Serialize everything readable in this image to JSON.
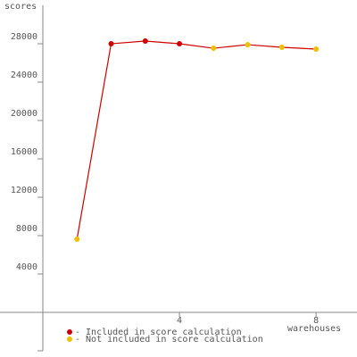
{
  "chart_data": {
    "type": "line",
    "y_label": "scores",
    "x_label": "warehouses",
    "x": [
      1,
      2,
      3,
      4,
      5,
      6,
      7,
      8
    ],
    "values": [
      7630,
      28000,
      28280,
      28000,
      27530,
      27900,
      27630,
      27440
    ],
    "line_color": "#cc0000",
    "marker_colors": [
      "#f0c000",
      "#cc0000",
      "#cc0000",
      "#cc0000",
      "#f0c000",
      "#f0c000",
      "#f0c000",
      "#f0c000"
    ],
    "legend": [
      {
        "name": "- Included in score calculation",
        "color": "#cc0000"
      },
      {
        "name": "- Not included in score calculation",
        "color": "#f0c000"
      }
    ],
    "xlim": [
      0,
      9.2
    ],
    "xticks": [
      4,
      8
    ],
    "ylim": [
      -4000,
      32000
    ],
    "yticks": [
      -4000,
      4000,
      8000,
      12000,
      16000,
      20000,
      24000,
      28000
    ],
    "ytick_labels_shown": [
      4000,
      8000,
      12000,
      16000,
      20000,
      24000,
      28000
    ]
  }
}
